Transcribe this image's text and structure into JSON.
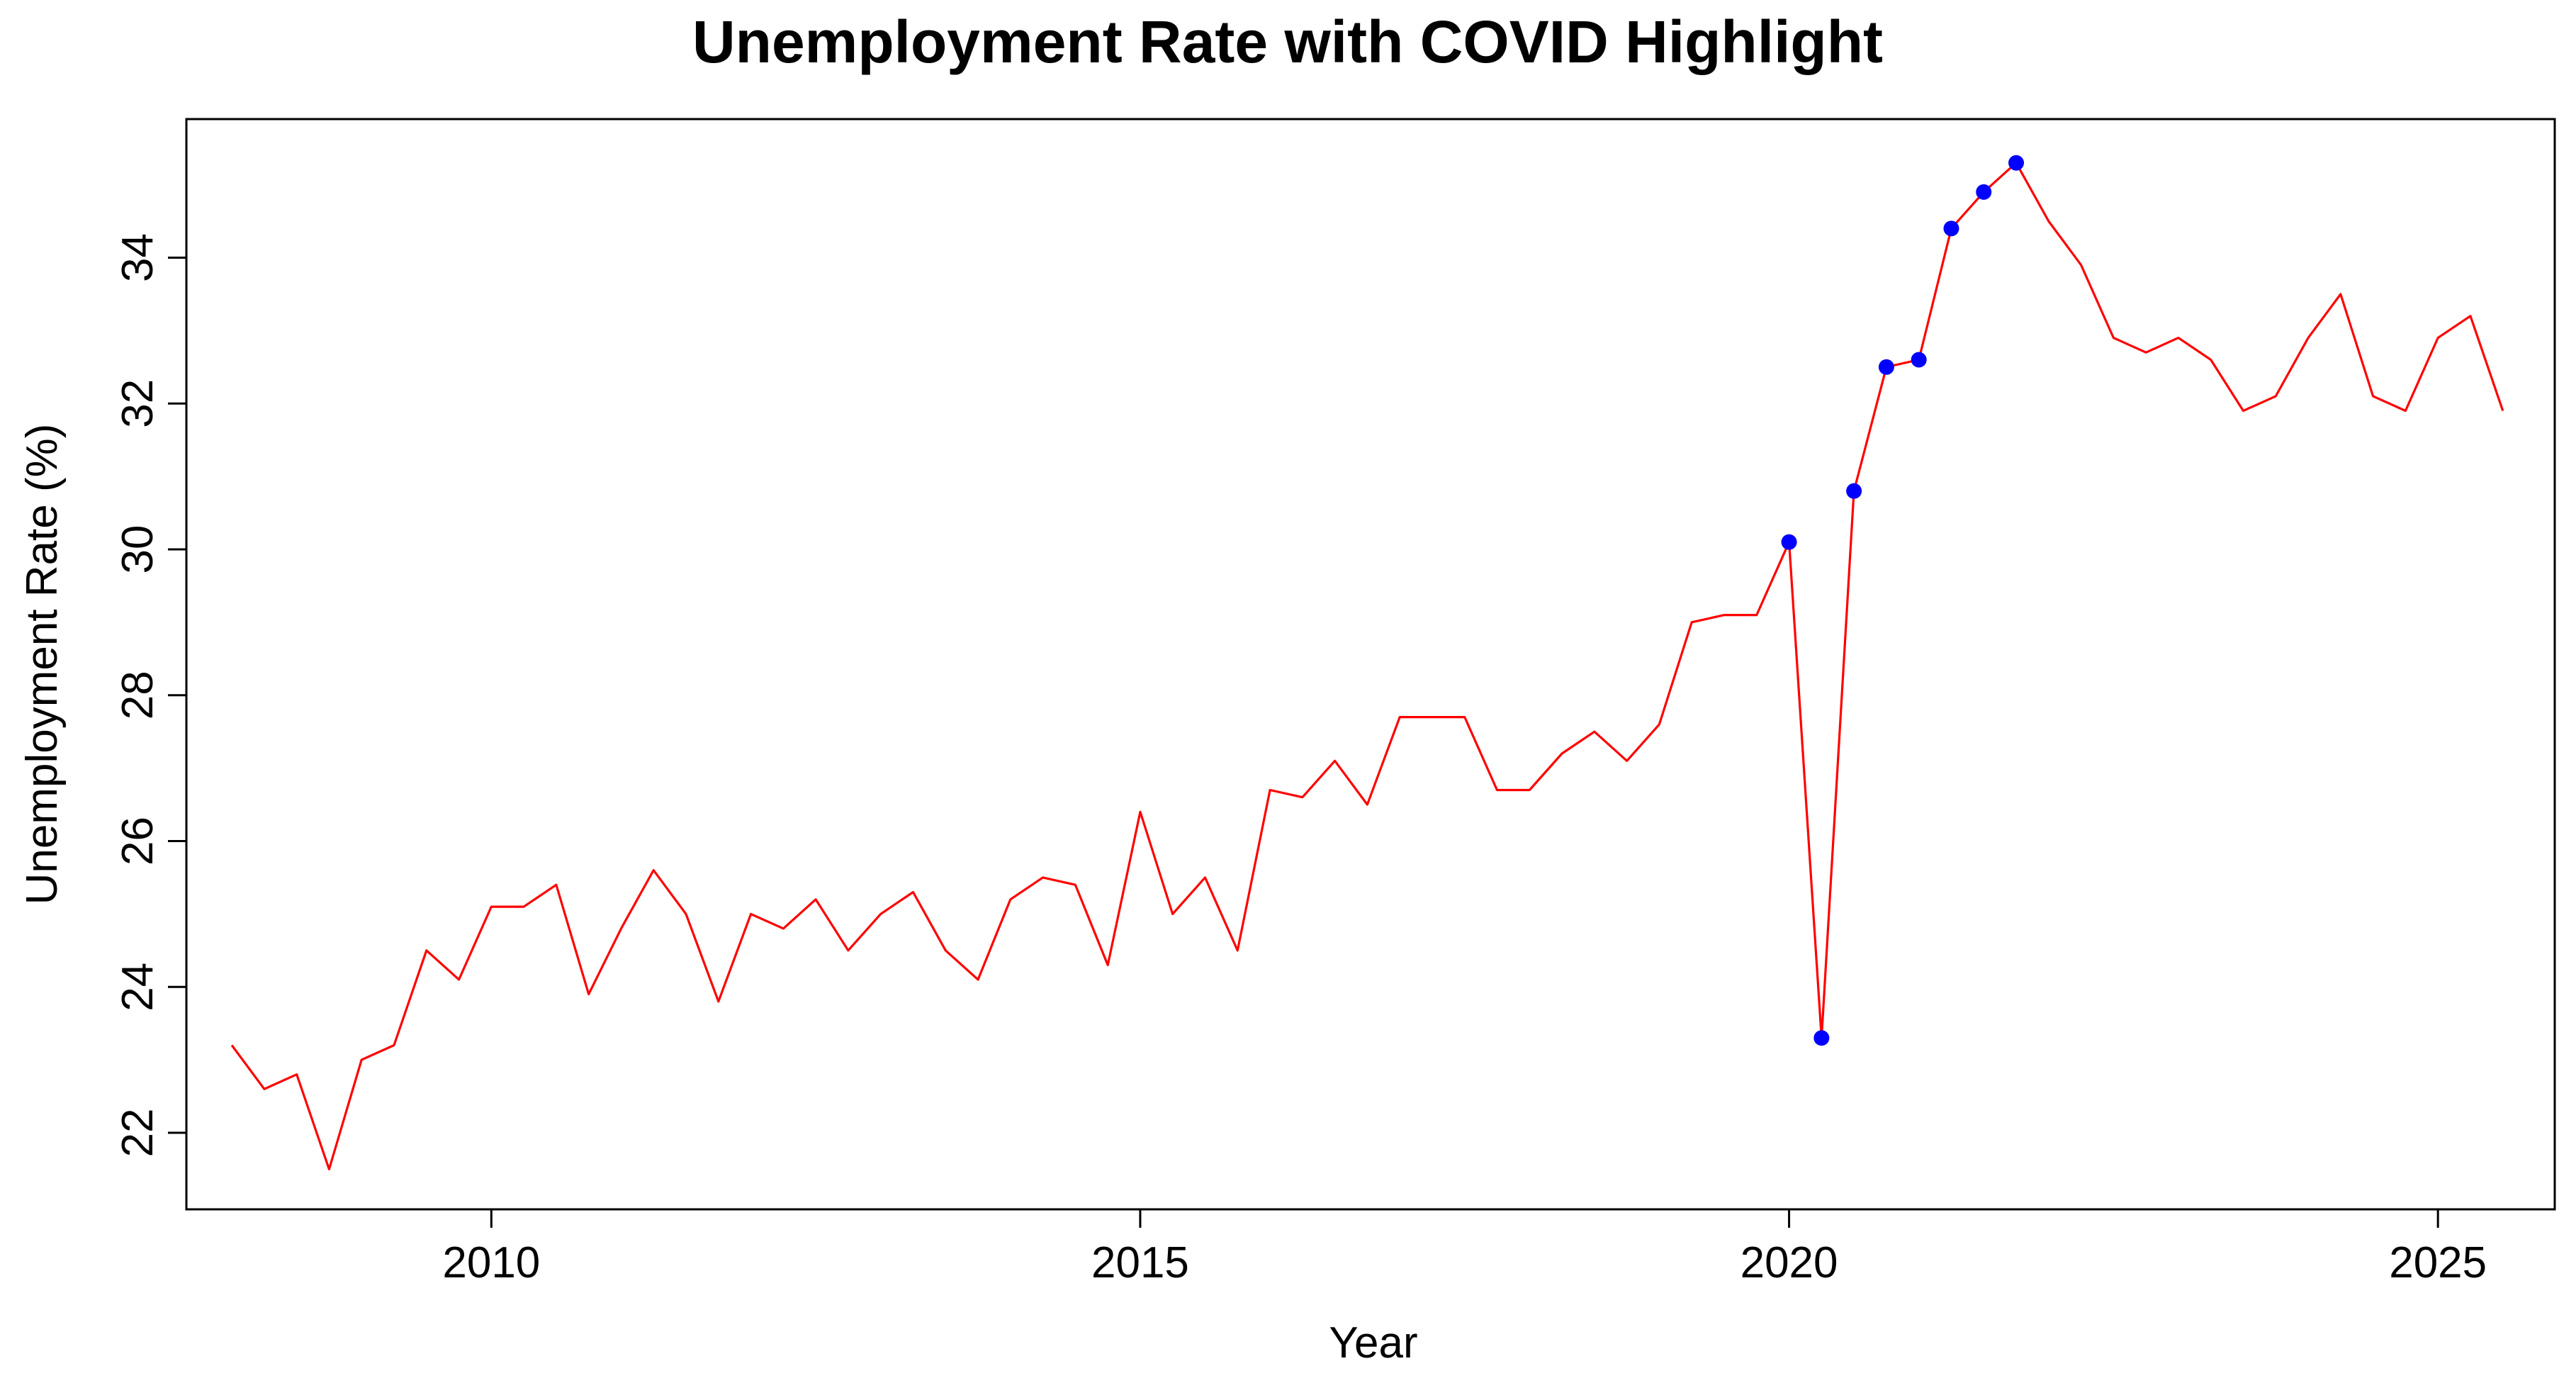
{
  "chart_data": {
    "type": "line",
    "title": "Unemployment Rate with COVID Highlight",
    "xlabel": "Year",
    "ylabel": "Unemployment Rate (%)",
    "xlim": [
      2007.65,
      2025.9
    ],
    "ylim": [
      20.95,
      35.9
    ],
    "x_ticks": [
      2010,
      2015,
      2020,
      2025
    ],
    "y_ticks": [
      22,
      24,
      26,
      28,
      30,
      32,
      34
    ],
    "grid": false,
    "legend": "none",
    "line_color": "#ff0000",
    "highlight_color": "#0000ff",
    "highlight_label": "COVID",
    "x": [
      2008.0,
      2008.25,
      2008.5,
      2008.75,
      2009.0,
      2009.25,
      2009.5,
      2009.75,
      2010.0,
      2010.25,
      2010.5,
      2010.75,
      2011.0,
      2011.25,
      2011.5,
      2011.75,
      2012.0,
      2012.25,
      2012.5,
      2012.75,
      2013.0,
      2013.25,
      2013.5,
      2013.75,
      2014.0,
      2014.25,
      2014.5,
      2014.75,
      2015.0,
      2015.25,
      2015.5,
      2015.75,
      2016.0,
      2016.25,
      2016.5,
      2016.75,
      2017.0,
      2017.25,
      2017.5,
      2017.75,
      2018.0,
      2018.25,
      2018.5,
      2018.75,
      2019.0,
      2019.25,
      2019.5,
      2019.75,
      2020.0,
      2020.25,
      2020.5,
      2020.75,
      2021.0,
      2021.25,
      2021.5,
      2021.75,
      2022.0,
      2022.25,
      2022.5,
      2022.75,
      2023.0,
      2023.25,
      2023.5,
      2023.75,
      2024.0,
      2024.25,
      2024.5,
      2024.75,
      2025.0,
      2025.25,
      2025.5
    ],
    "values": [
      23.2,
      22.6,
      22.8,
      21.5,
      23.0,
      23.2,
      24.5,
      24.1,
      25.1,
      25.1,
      25.4,
      23.9,
      24.8,
      25.6,
      25.0,
      23.8,
      25.0,
      24.8,
      25.2,
      24.5,
      25.0,
      25.3,
      24.5,
      24.1,
      25.2,
      25.5,
      25.4,
      24.3,
      26.4,
      25.0,
      25.5,
      24.5,
      26.7,
      26.6,
      27.1,
      26.5,
      27.7,
      27.7,
      27.7,
      26.7,
      26.7,
      27.2,
      27.5,
      27.1,
      27.6,
      29.0,
      29.1,
      29.1,
      30.1,
      23.3,
      30.8,
      32.5,
      32.6,
      34.4,
      34.9,
      35.3,
      34.5,
      33.9,
      32.9,
      32.7,
      32.9,
      32.6,
      31.9,
      32.1,
      32.9,
      33.5,
      32.1,
      31.9,
      32.9,
      33.2,
      31.9
    ],
    "highlight_points": [
      {
        "x": 2020.0,
        "y": 30.1
      },
      {
        "x": 2020.25,
        "y": 23.3
      },
      {
        "x": 2020.5,
        "y": 30.8
      },
      {
        "x": 2020.75,
        "y": 32.5
      },
      {
        "x": 2021.0,
        "y": 32.6
      },
      {
        "x": 2021.25,
        "y": 34.4
      },
      {
        "x": 2021.5,
        "y": 34.9
      },
      {
        "x": 2021.75,
        "y": 35.3
      }
    ]
  }
}
